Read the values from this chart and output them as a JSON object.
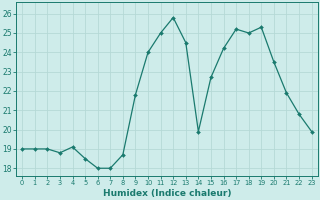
{
  "x": [
    0,
    1,
    2,
    3,
    4,
    5,
    6,
    7,
    8,
    9,
    10,
    11,
    12,
    13,
    14,
    15,
    16,
    17,
    18,
    19,
    20,
    21,
    22,
    23
  ],
  "y": [
    19.0,
    19.0,
    19.0,
    18.8,
    19.1,
    18.5,
    18.0,
    18.0,
    18.7,
    21.8,
    24.0,
    25.0,
    25.8,
    24.5,
    19.9,
    22.7,
    24.2,
    25.2,
    25.0,
    25.3,
    23.5,
    21.9,
    20.8,
    19.9
  ],
  "line_color": "#1a7a6e",
  "marker": "D",
  "marker_size": 2.0,
  "bg_color": "#ceecea",
  "grid_color": "#b5d9d6",
  "xlabel": "Humidex (Indice chaleur)",
  "ylabel_ticks": [
    18,
    19,
    20,
    21,
    22,
    23,
    24,
    25,
    26
  ],
  "xlim": [
    -0.5,
    23.5
  ],
  "ylim": [
    17.6,
    26.6
  ],
  "xtick_labels": [
    "0",
    "1",
    "2",
    "3",
    "4",
    "5",
    "6",
    "7",
    "8",
    "9",
    "10",
    "11",
    "12",
    "13",
    "14",
    "15",
    "16",
    "17",
    "18",
    "19",
    "20",
    "21",
    "22",
    "23"
  ],
  "axis_color": "#1a7a6e",
  "tick_color": "#1a7a6e",
  "label_color": "#1a7a6e",
  "xlabel_fontsize": 6.5,
  "xlabel_fontweight": "bold",
  "ytick_fontsize": 5.5,
  "xtick_fontsize": 4.8,
  "linewidth": 0.9
}
